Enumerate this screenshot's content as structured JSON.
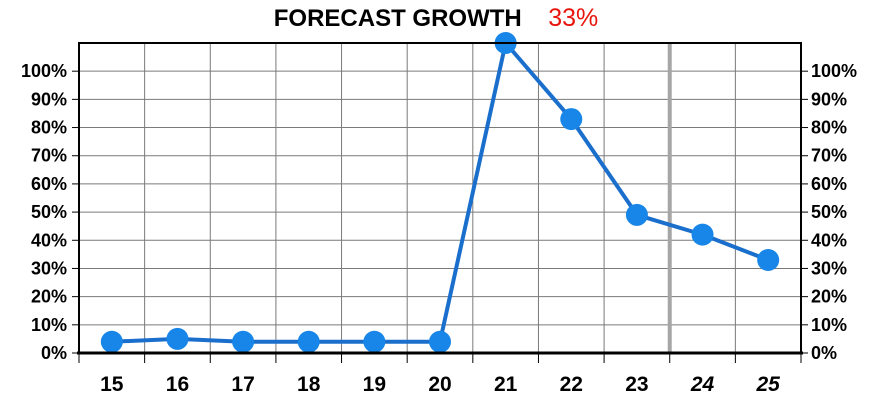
{
  "colors": {
    "series": "#1786e8",
    "series_stroke": "#1b6fcc",
    "accent": "#e8150c",
    "grid": "#7a7a7a",
    "forecast_divider": "#a6a6a6",
    "axis": "#000000"
  },
  "chart_data": {
    "type": "line",
    "title": "FORECAST GROWTH",
    "title_value": "33%",
    "xlabel": "",
    "ylabel": "",
    "categories": [
      "15",
      "16",
      "17",
      "18",
      "19",
      "20",
      "21",
      "22",
      "23",
      "24",
      "25"
    ],
    "forecast_categories": [
      "24",
      "25"
    ],
    "ylim": [
      0,
      1.1
    ],
    "yticks": [
      0,
      0.1,
      0.2,
      0.3,
      0.4,
      0.5,
      0.6,
      0.7,
      0.8,
      0.9,
      1.0
    ],
    "ytick_labels": [
      "0%",
      "10%",
      "20%",
      "30%",
      "40%",
      "50%",
      "60%",
      "70%",
      "80%",
      "90%",
      "100%"
    ],
    "y_axis_both_sides": true,
    "grid": true,
    "series": [
      {
        "values": [
          0.04,
          0.05,
          0.04,
          0.04,
          0.04,
          0.04,
          1.1,
          0.83,
          0.49,
          0.42,
          0.33
        ],
        "marker": "circle"
      }
    ],
    "offscale_peak_above_top": true
  }
}
